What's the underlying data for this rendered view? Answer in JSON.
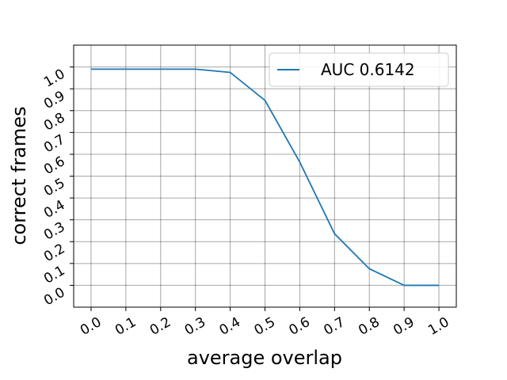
{
  "chart_data": {
    "type": "line",
    "xlabel": "average overlap",
    "ylabel": "correct frames",
    "x": [
      0,
      0.1,
      0.2,
      0.3,
      0.4,
      0.5,
      0.6,
      0.7,
      0.8,
      0.9,
      1.0
    ],
    "series": [
      {
        "name": "AUC 0.6142",
        "color": "#1f77b4",
        "values": [
          0.99,
          0.99,
          0.99,
          0.99,
          0.975,
          0.847,
          0.564,
          0.236,
          0.076,
          0,
          0
        ]
      }
    ],
    "xlim": [
      -0.05,
      1.05
    ],
    "ylim": [
      -0.1,
      1.1
    ],
    "xticks": [
      {
        "value": 0,
        "label": "0.0"
      },
      {
        "value": 0.1,
        "label": "0.1"
      },
      {
        "value": 0.2,
        "label": "0.2"
      },
      {
        "value": 0.3,
        "label": "0.3"
      },
      {
        "value": 0.4,
        "label": "0.4"
      },
      {
        "value": 0.5,
        "label": "0.5"
      },
      {
        "value": 0.6,
        "label": "0.6"
      },
      {
        "value": 0.7,
        "label": "0.7"
      },
      {
        "value": 0.8,
        "label": "0.8"
      },
      {
        "value": 0.9,
        "label": "0.9"
      },
      {
        "value": 1,
        "label": "1.0"
      }
    ],
    "yticks": [
      {
        "value": 0,
        "label": "0.0"
      },
      {
        "value": 0.1,
        "label": "0.1"
      },
      {
        "value": 0.2,
        "label": "0.2"
      },
      {
        "value": 0.3,
        "label": "0.3"
      },
      {
        "value": 0.4,
        "label": "0.4"
      },
      {
        "value": 0.5,
        "label": "0.5"
      },
      {
        "value": 0.6,
        "label": "0.6"
      },
      {
        "value": 0.7,
        "label": "0.7"
      },
      {
        "value": 0.8,
        "label": "0.8"
      },
      {
        "value": 0.9,
        "label": "0.9"
      },
      {
        "value": 1,
        "label": "1.0"
      }
    ],
    "grid": true,
    "legend": "upper right"
  }
}
